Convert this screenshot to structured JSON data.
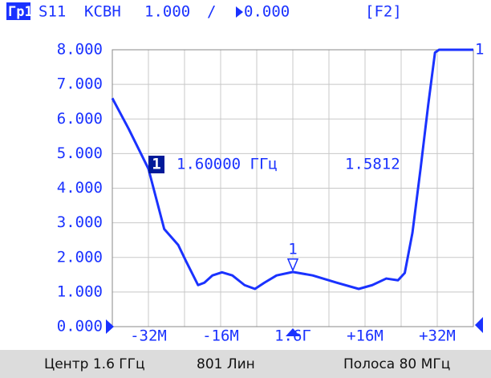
{
  "chart_data": {
    "type": "line",
    "header": {
      "trace": "Гр1",
      "parameter": "S11",
      "format": "КСВН",
      "scale": "1.000",
      "separator": "/",
      "reference": "0.000",
      "channel": "[F2]"
    },
    "x": [
      1560,
      1563.6,
      1568,
      1571.5,
      1574.6,
      1576.3,
      1579,
      1580.4,
      1582.2,
      1584.3,
      1586.6,
      1589.3,
      1591.6,
      1593.7,
      1596.4,
      1600,
      1604.4,
      1609.7,
      1614.6,
      1617.6,
      1620.7,
      1623.3,
      1624.8,
      1626.5,
      1628.3,
      1630,
      1631.5,
      1632.4,
      1640
    ],
    "values": [
      6.6,
      5.72,
      4.56,
      2.82,
      2.36,
      1.9,
      1.2,
      1.27,
      1.48,
      1.57,
      1.48,
      1.2,
      1.09,
      1.27,
      1.48,
      1.58,
      1.48,
      1.27,
      1.09,
      1.2,
      1.39,
      1.34,
      1.55,
      2.71,
      4.56,
      6.41,
      7.92,
      8.0,
      8.0
    ],
    "color": "#1a32ff",
    "xlim": [
      1560,
      1640
    ],
    "xticks": [
      {
        "value": 1568,
        "label": "-32M"
      },
      {
        "value": 1584,
        "label": "-16M"
      },
      {
        "value": 1600,
        "label": "1.6Г"
      },
      {
        "value": 1616,
        "label": "+16M"
      },
      {
        "value": 1632,
        "label": "+32M"
      }
    ],
    "xgrid": [
      1560,
      1568,
      1576,
      1584,
      1592,
      1600,
      1608,
      1616,
      1624,
      1632,
      1640
    ],
    "ylim": [
      0,
      8
    ],
    "yticks": [
      {
        "value": 0,
        "label": "0.000"
      },
      {
        "value": 1,
        "label": "1.000"
      },
      {
        "value": 2,
        "label": "2.000"
      },
      {
        "value": 3,
        "label": "3.000"
      },
      {
        "value": 4,
        "label": "4.000"
      },
      {
        "value": 5,
        "label": "5.000"
      },
      {
        "value": 6,
        "label": "6.000"
      },
      {
        "value": 7,
        "label": "7.000"
      },
      {
        "value": 8,
        "label": "8.000"
      }
    ],
    "grid": true,
    "trace_label": "1",
    "marker": {
      "label": "1",
      "x": 1600,
      "value": 1.5812,
      "freq_label": "1.60000 ГГц"
    },
    "footer": {
      "center": "Центр 1.6 ГГц",
      "points": "801 Лин",
      "span": "Полоса 80 МГц"
    }
  }
}
